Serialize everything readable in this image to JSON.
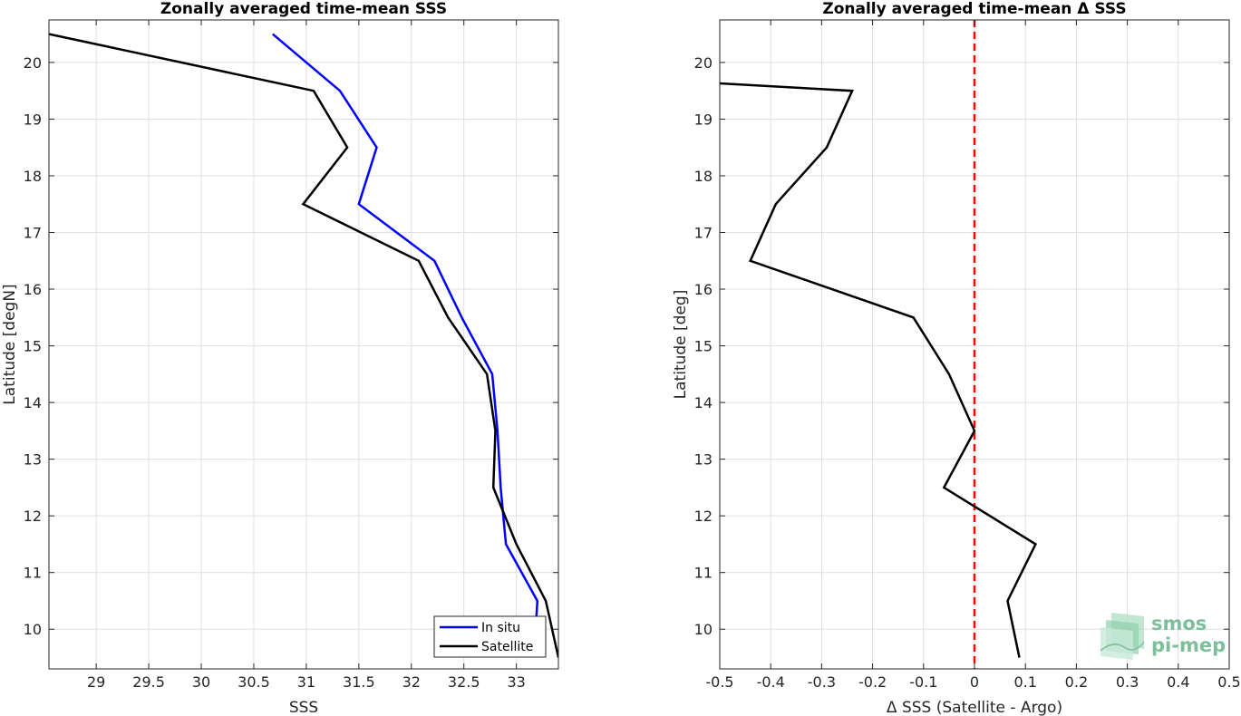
{
  "chart_data": [
    {
      "type": "line",
      "title": "Zonally averaged time-mean SSS",
      "xlabel": "SSS",
      "ylabel": "Latitude [degN]",
      "xlim": [
        28.55,
        33.4
      ],
      "ylim": [
        9.3,
        20.75
      ],
      "xticks": [
        29,
        29.5,
        30,
        30.5,
        31,
        31.5,
        32,
        32.5,
        33
      ],
      "xtick_labels": [
        "29",
        "29.5",
        "30",
        "30.5",
        "31",
        "31.5",
        "32",
        "32.5",
        "33"
      ],
      "yticks": [
        10,
        11,
        12,
        13,
        14,
        15,
        16,
        17,
        18,
        19,
        20
      ],
      "ytick_labels": [
        "10",
        "11",
        "12",
        "13",
        "14",
        "15",
        "16",
        "17",
        "18",
        "19",
        "20"
      ],
      "grid": true,
      "legend": "bottom-right",
      "series": [
        {
          "name": "In situ",
          "color": "#0000ff",
          "points": [
            [
              30.68,
              20.5
            ],
            [
              31.32,
              19.5
            ],
            [
              31.67,
              18.5
            ],
            [
              31.5,
              17.5
            ],
            [
              32.22,
              16.5
            ],
            [
              32.48,
              15.5
            ],
            [
              32.77,
              14.5
            ],
            [
              32.82,
              13.5
            ],
            [
              32.85,
              12.5
            ],
            [
              32.9,
              11.5
            ],
            [
              33.2,
              10.5
            ],
            [
              33.18,
              9.9
            ]
          ]
        },
        {
          "name": "Satellite",
          "color": "#000000",
          "points": [
            [
              28.55,
              20.5
            ],
            [
              31.07,
              19.5
            ],
            [
              31.39,
              18.5
            ],
            [
              30.97,
              17.5
            ],
            [
              32.07,
              16.5
            ],
            [
              32.35,
              15.5
            ],
            [
              32.72,
              14.5
            ],
            [
              32.8,
              13.5
            ],
            [
              32.78,
              12.5
            ],
            [
              33.0,
              11.5
            ],
            [
              33.28,
              10.5
            ],
            [
              33.4,
              9.5
            ]
          ]
        }
      ]
    },
    {
      "type": "line",
      "title": "Zonally averaged time-mean Δ SSS",
      "xlabel": "Δ SSS (Satellite - Argo)",
      "ylabel": "Latitude [deg]",
      "xlim": [
        -0.5,
        0.5
      ],
      "ylim": [
        9.3,
        20.75
      ],
      "xticks": [
        -0.5,
        -0.4,
        -0.3,
        -0.2,
        -0.1,
        0,
        0.1,
        0.2,
        0.3,
        0.4,
        0.5
      ],
      "xtick_labels": [
        "-0.5",
        "-0.4",
        "-0.3",
        "-0.2",
        "-0.1",
        "0",
        "0.1",
        "0.2",
        "0.3",
        "0.4",
        "0.5"
      ],
      "yticks": [
        10,
        11,
        12,
        13,
        14,
        15,
        16,
        17,
        18,
        19,
        20
      ],
      "ytick_labels": [
        "10",
        "11",
        "12",
        "13",
        "14",
        "15",
        "16",
        "17",
        "18",
        "19",
        "20"
      ],
      "grid": true,
      "reference_line": {
        "x": 0,
        "color": "#ff0000",
        "style": "dashed"
      },
      "series": [
        {
          "color": "#000000",
          "points": [
            [
              -0.5,
              19.63
            ],
            [
              -0.24,
              19.5
            ],
            [
              -0.29,
              18.5
            ],
            [
              -0.39,
              17.5
            ],
            [
              -0.44,
              16.5
            ],
            [
              -0.12,
              15.5
            ],
            [
              -0.05,
              14.5
            ],
            [
              0.0,
              13.5
            ],
            [
              -0.06,
              12.5
            ],
            [
              0.12,
              11.5
            ],
            [
              0.065,
              10.5
            ],
            [
              0.088,
              9.5
            ]
          ]
        }
      ]
    }
  ],
  "logo": {
    "line1": "smos",
    "line2": "pi-mep",
    "color": "#7dbf9a"
  }
}
